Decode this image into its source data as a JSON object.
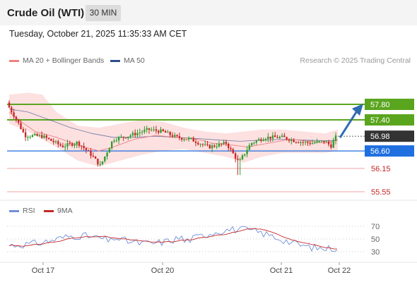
{
  "header": {
    "title": "Crude Oil (WTI)",
    "interval": "30 MIN"
  },
  "timestamp": "Tuesday, October 21, 2025 11:35:33 AM CET",
  "legend": {
    "ma20_label": "MA 20 + Bollinger Bands",
    "ma50_label": "MA 50",
    "rsi_label": "RSI",
    "rsi9_label": "9MA",
    "credit": "Research © 2025 Trading Central"
  },
  "colors": {
    "up_candle": "#2e9e2e",
    "down_candle": "#c62828",
    "ma20": "#f08080",
    "ma50": "#2c4f8c",
    "bollinger": "#fde0e0",
    "resistance": "#5aa51e",
    "pivot": "#1f6fe0",
    "support": "#f2a0a0",
    "current": "#333333",
    "rsi": "#6f8fd8",
    "rsi_ma": "#c62828",
    "arrow": "#2f6cb0"
  },
  "chart_data": {
    "type": "candlestick",
    "price_axis": {
      "ymin": 55.3,
      "ymax": 58.6
    },
    "x_labels": [
      "Oct 17",
      "Oct 20",
      "Oct 21",
      "Oct 22"
    ],
    "levels": [
      {
        "value": 57.8,
        "label": "57.80",
        "kind": "resistance"
      },
      {
        "value": 57.4,
        "label": "57.40",
        "kind": "resistance"
      },
      {
        "value": 56.98,
        "label": "56.98",
        "kind": "current"
      },
      {
        "value": 56.6,
        "label": "56.60",
        "kind": "pivot"
      },
      {
        "value": 56.15,
        "label": "56.15",
        "kind": "support"
      },
      {
        "value": 55.55,
        "label": "55.55",
        "kind": "support"
      }
    ],
    "rsi_axis": {
      "ymin": 10,
      "ymax": 90,
      "ticks": [
        70,
        50,
        30
      ]
    }
  }
}
